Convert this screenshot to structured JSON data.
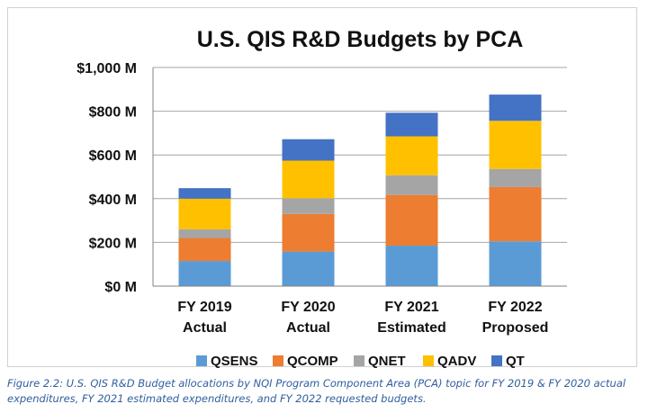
{
  "chart_data": {
    "type": "bar",
    "stacked": true,
    "title": "U.S. QIS R&D Budgets by PCA",
    "categories": [
      [
        "FY 2019",
        "Actual"
      ],
      [
        "FY 2020",
        "Actual"
      ],
      [
        "FY 2021",
        "Estimated"
      ],
      [
        "FY 2022",
        "Proposed"
      ]
    ],
    "series": [
      {
        "name": "QSENS",
        "color": "#5b9bd5",
        "values": [
          115,
          158,
          185,
          205
        ]
      },
      {
        "name": "QCOMP",
        "color": "#ed7d31",
        "values": [
          105,
          172,
          232,
          248
        ]
      },
      {
        "name": "QNET",
        "color": "#a5a5a5",
        "values": [
          40,
          72,
          90,
          83
        ]
      },
      {
        "name": "QADV",
        "color": "#ffc000",
        "values": [
          140,
          172,
          178,
          220
        ]
      },
      {
        "name": "QT",
        "color": "#4472c4",
        "values": [
          48,
          98,
          108,
          120
        ]
      }
    ],
    "ylim": [
      0,
      1000
    ],
    "yticks": [
      0,
      200,
      400,
      600,
      800,
      1000
    ],
    "ytick_labels": [
      "$0 M",
      "$200 M",
      "$400 M",
      "$600 M",
      "$800 M",
      "$1,000 M"
    ],
    "grid": true,
    "legend": "bottom"
  },
  "caption": "Figure 2.2: U.S. QIS R&D Budget allocations by NQI Program Component Area (PCA) topic for FY 2019 & FY 2020 actual expenditures, FY 2021 estimated expenditures, and FY 2022 requested budgets."
}
